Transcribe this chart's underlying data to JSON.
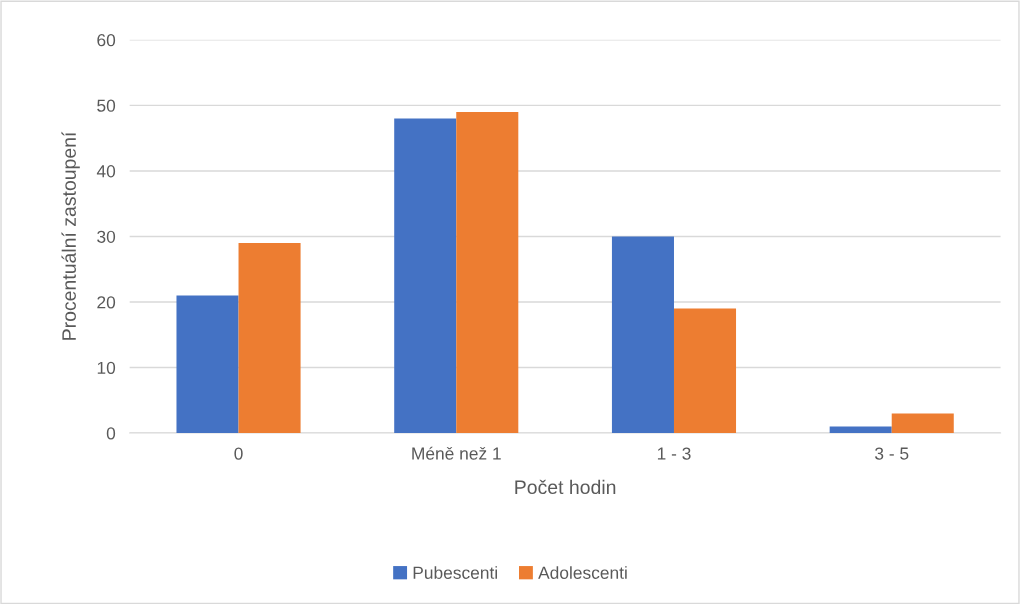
{
  "chart_data": {
    "type": "bar",
    "xlabel": "Počet hodin",
    "ylabel": "Procentuální zastoupení",
    "categories": [
      "0",
      "Méně než 1",
      "1 - 3",
      "3 - 5"
    ],
    "series": [
      {
        "name": "Pubescenti",
        "color": "#4472c4",
        "values": [
          21,
          48,
          30,
          1
        ]
      },
      {
        "name": "Adolescenti",
        "color": "#ed7d31",
        "values": [
          29,
          49,
          19,
          3
        ]
      }
    ],
    "ylim": [
      0,
      60
    ],
    "yticks": [
      0,
      10,
      20,
      30,
      40,
      50,
      60
    ],
    "grid": "y",
    "legend": "bottom"
  }
}
